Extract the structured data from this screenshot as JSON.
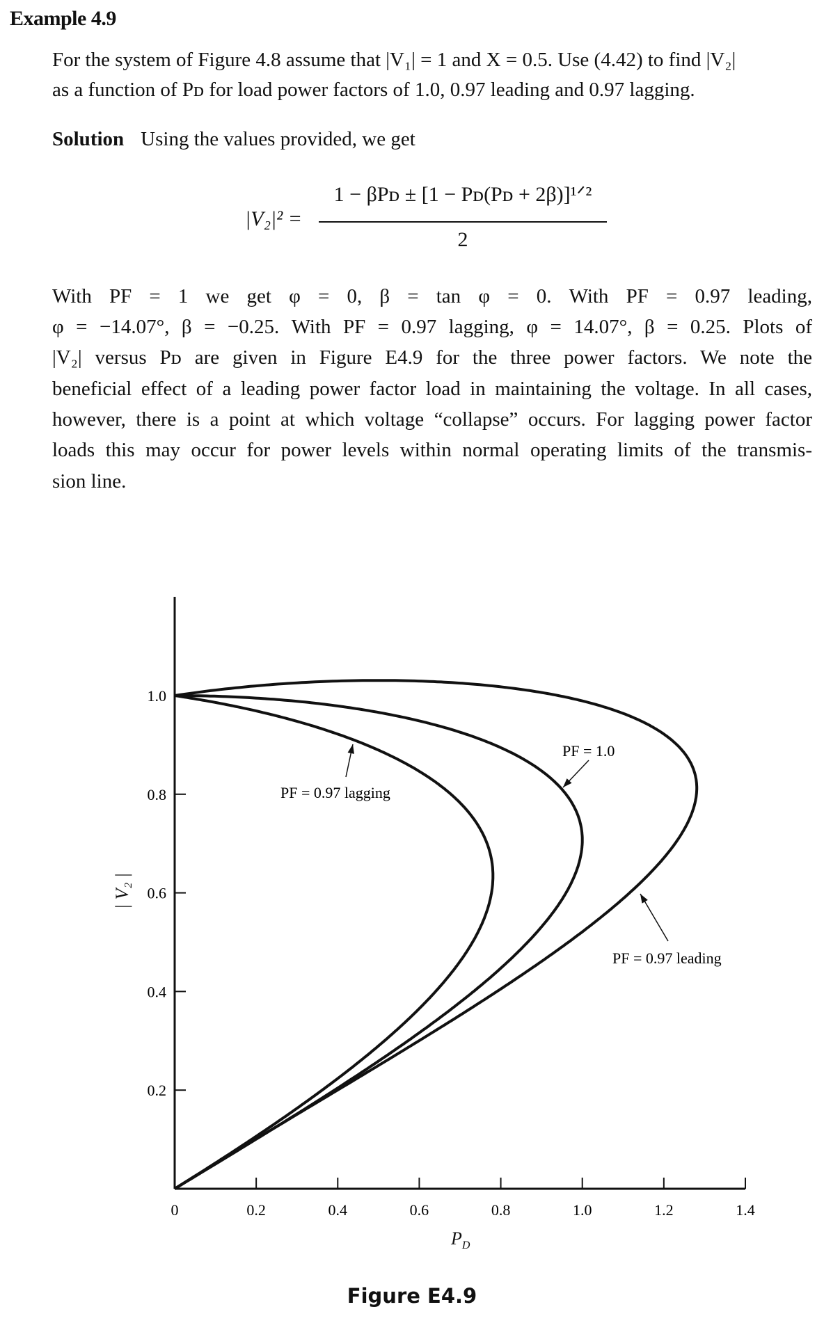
{
  "title": "Example 4.9",
  "paragraph1": [
    "For the system of Figure 4.8 assume that |V₁| = 1 and X = 0.5.  Use (4.42) to find |V₂|",
    "as a function of Pᴅ for load power factors of 1.0, 0.97 leading and 0.97 lagging."
  ],
  "solution": {
    "label": "Solution",
    "text": "Using the values provided, we get"
  },
  "equation": {
    "lhs": "|V₂|² =",
    "numerator": "1 − βPᴅ ± [1 − Pᴅ(Pᴅ + 2β)]¹ᐟ²",
    "denominator": "2"
  },
  "paragraph2": [
    "With   PF = 1   we   get   φ = 0,  β = tan φ = 0.   With   PF = 0.97   leading,",
    "φ = −14.07°, β = −0.25.  With PF = 0.97 lagging, φ = 14.07°, β = 0.25.  Plots of",
    "|V₂|  versus  Pᴅ  are given in Figure E4.9 for the three power factors.  We note the",
    "beneficial effect of a leading power factor load in maintaining the voltage.  In all cases,",
    "however, there is a point at which voltage “collapse” occurs.  For lagging power factor",
    "loads this may occur for power levels within normal operating limits of the transmis-",
    "sion line."
  ],
  "chart_data": {
    "type": "line",
    "xlabel": "P",
    "xlabel_sub": "D",
    "ylabel": "| V₂ |",
    "xlim": [
      0,
      1.4
    ],
    "ylim": [
      0,
      1.2
    ],
    "xticks": [
      "0",
      "0.2",
      "0.4",
      "0.6",
      "0.8",
      "1.0",
      "1.2",
      "1.4"
    ],
    "yticks": [
      "0.2",
      "0.4",
      "0.6",
      "0.8",
      "1.0"
    ],
    "grid": false,
    "equation": "|V2|^2 = (1 - beta*P + sqrt(1 - P*(P + 2*beta))) / 2 (upper and lower branches)",
    "series": [
      {
        "name": "PF = 0.97 lagging",
        "beta": 0.25,
        "nose": {
          "P": 0.78,
          "V": 0.634
        }
      },
      {
        "name": "PF = 1.0",
        "beta": 0,
        "nose": {
          "P": 1.0,
          "V": 0.707
        }
      },
      {
        "name": "PF = 0.97 leading",
        "beta": -0.25,
        "nose": {
          "P": 1.28,
          "V": 0.812
        }
      }
    ],
    "caption": "Figure E4.9"
  }
}
